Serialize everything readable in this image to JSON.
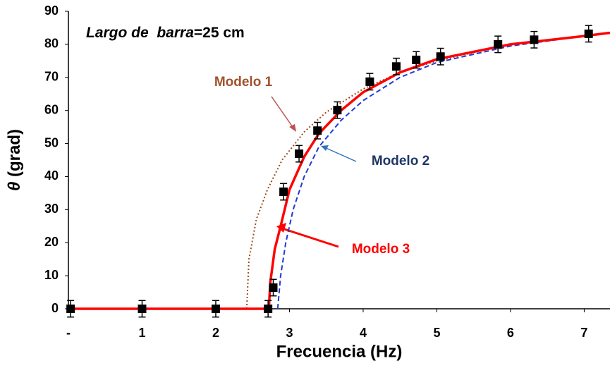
{
  "chart_data": {
    "type": "scatter",
    "annotation_italic": "Largo de  barra",
    "annotation_rest": "=25 cm",
    "xlabel": "Frecuencia (Hz)",
    "ylabel_symbol": "θ",
    "ylabel_unit": "(grad)",
    "xlim": [
      0,
      7.35
    ],
    "ylim": [
      0,
      90
    ],
    "xticks": [
      {
        "value": 0,
        "label": "-"
      },
      1,
      2,
      3,
      4,
      5,
      6,
      7
    ],
    "yticks": [
      0,
      10,
      20,
      30,
      40,
      50,
      60,
      70,
      80,
      90
    ],
    "series": [
      {
        "name": "Modelo 1",
        "style": "dotted",
        "color": "#9c4a1a",
        "label_color": "#a0522d",
        "x": [
          2.42,
          2.45,
          2.55,
          2.7,
          2.9,
          3.2,
          3.5,
          4.0,
          4.5,
          5.0,
          6.0,
          7.0,
          7.35
        ],
        "values": [
          0,
          15,
          27,
          36,
          45,
          53.5,
          59.5,
          66.5,
          71.5,
          75,
          80,
          82.5,
          83.5
        ]
      },
      {
        "name": "Modelo 2",
        "style": "dashed",
        "color": "#1f3bd6",
        "label_color": "#1f3864",
        "x": [
          2.84,
          2.88,
          2.95,
          3.05,
          3.2,
          3.4,
          3.7,
          4.0,
          4.5,
          5.0,
          6.0,
          7.0,
          7.35
        ],
        "values": [
          0,
          10,
          20,
          30,
          40,
          49,
          57,
          63,
          70,
          74.5,
          79.5,
          82.5,
          83.5
        ]
      },
      {
        "name": "Modelo 3",
        "style": "solid",
        "color": "#ff0000",
        "label_color": "#ff0000",
        "x": [
          0,
          2.72,
          2.74,
          2.8,
          2.88,
          3.0,
          3.2,
          3.4,
          3.7,
          4.0,
          4.5,
          5.0,
          6.0,
          7.0,
          7.35
        ],
        "values": [
          0,
          0,
          8,
          18,
          25,
          36,
          46,
          53,
          60,
          65.5,
          71.5,
          75.5,
          80,
          82.5,
          83.5
        ]
      },
      {
        "style": "markers",
        "color": "#000000",
        "x": [
          0.03,
          1.0,
          2.0,
          2.71,
          2.78,
          2.92,
          3.13,
          3.38,
          3.65,
          4.09,
          4.45,
          4.72,
          5.05,
          5.83,
          6.32,
          7.06
        ],
        "values": [
          0,
          0,
          0,
          0,
          6.4,
          35.4,
          46.9,
          53.9,
          60.1,
          68.7,
          73.3,
          75.3,
          76.3,
          80,
          81.4,
          83.2
        ],
        "errors": [
          2.5,
          2.5,
          2.5,
          2.5,
          2.5,
          2.5,
          2.5,
          2.5,
          2.5,
          2.5,
          2.5,
          2.5,
          2.5,
          2.5,
          2.5,
          2.5
        ]
      }
    ]
  }
}
